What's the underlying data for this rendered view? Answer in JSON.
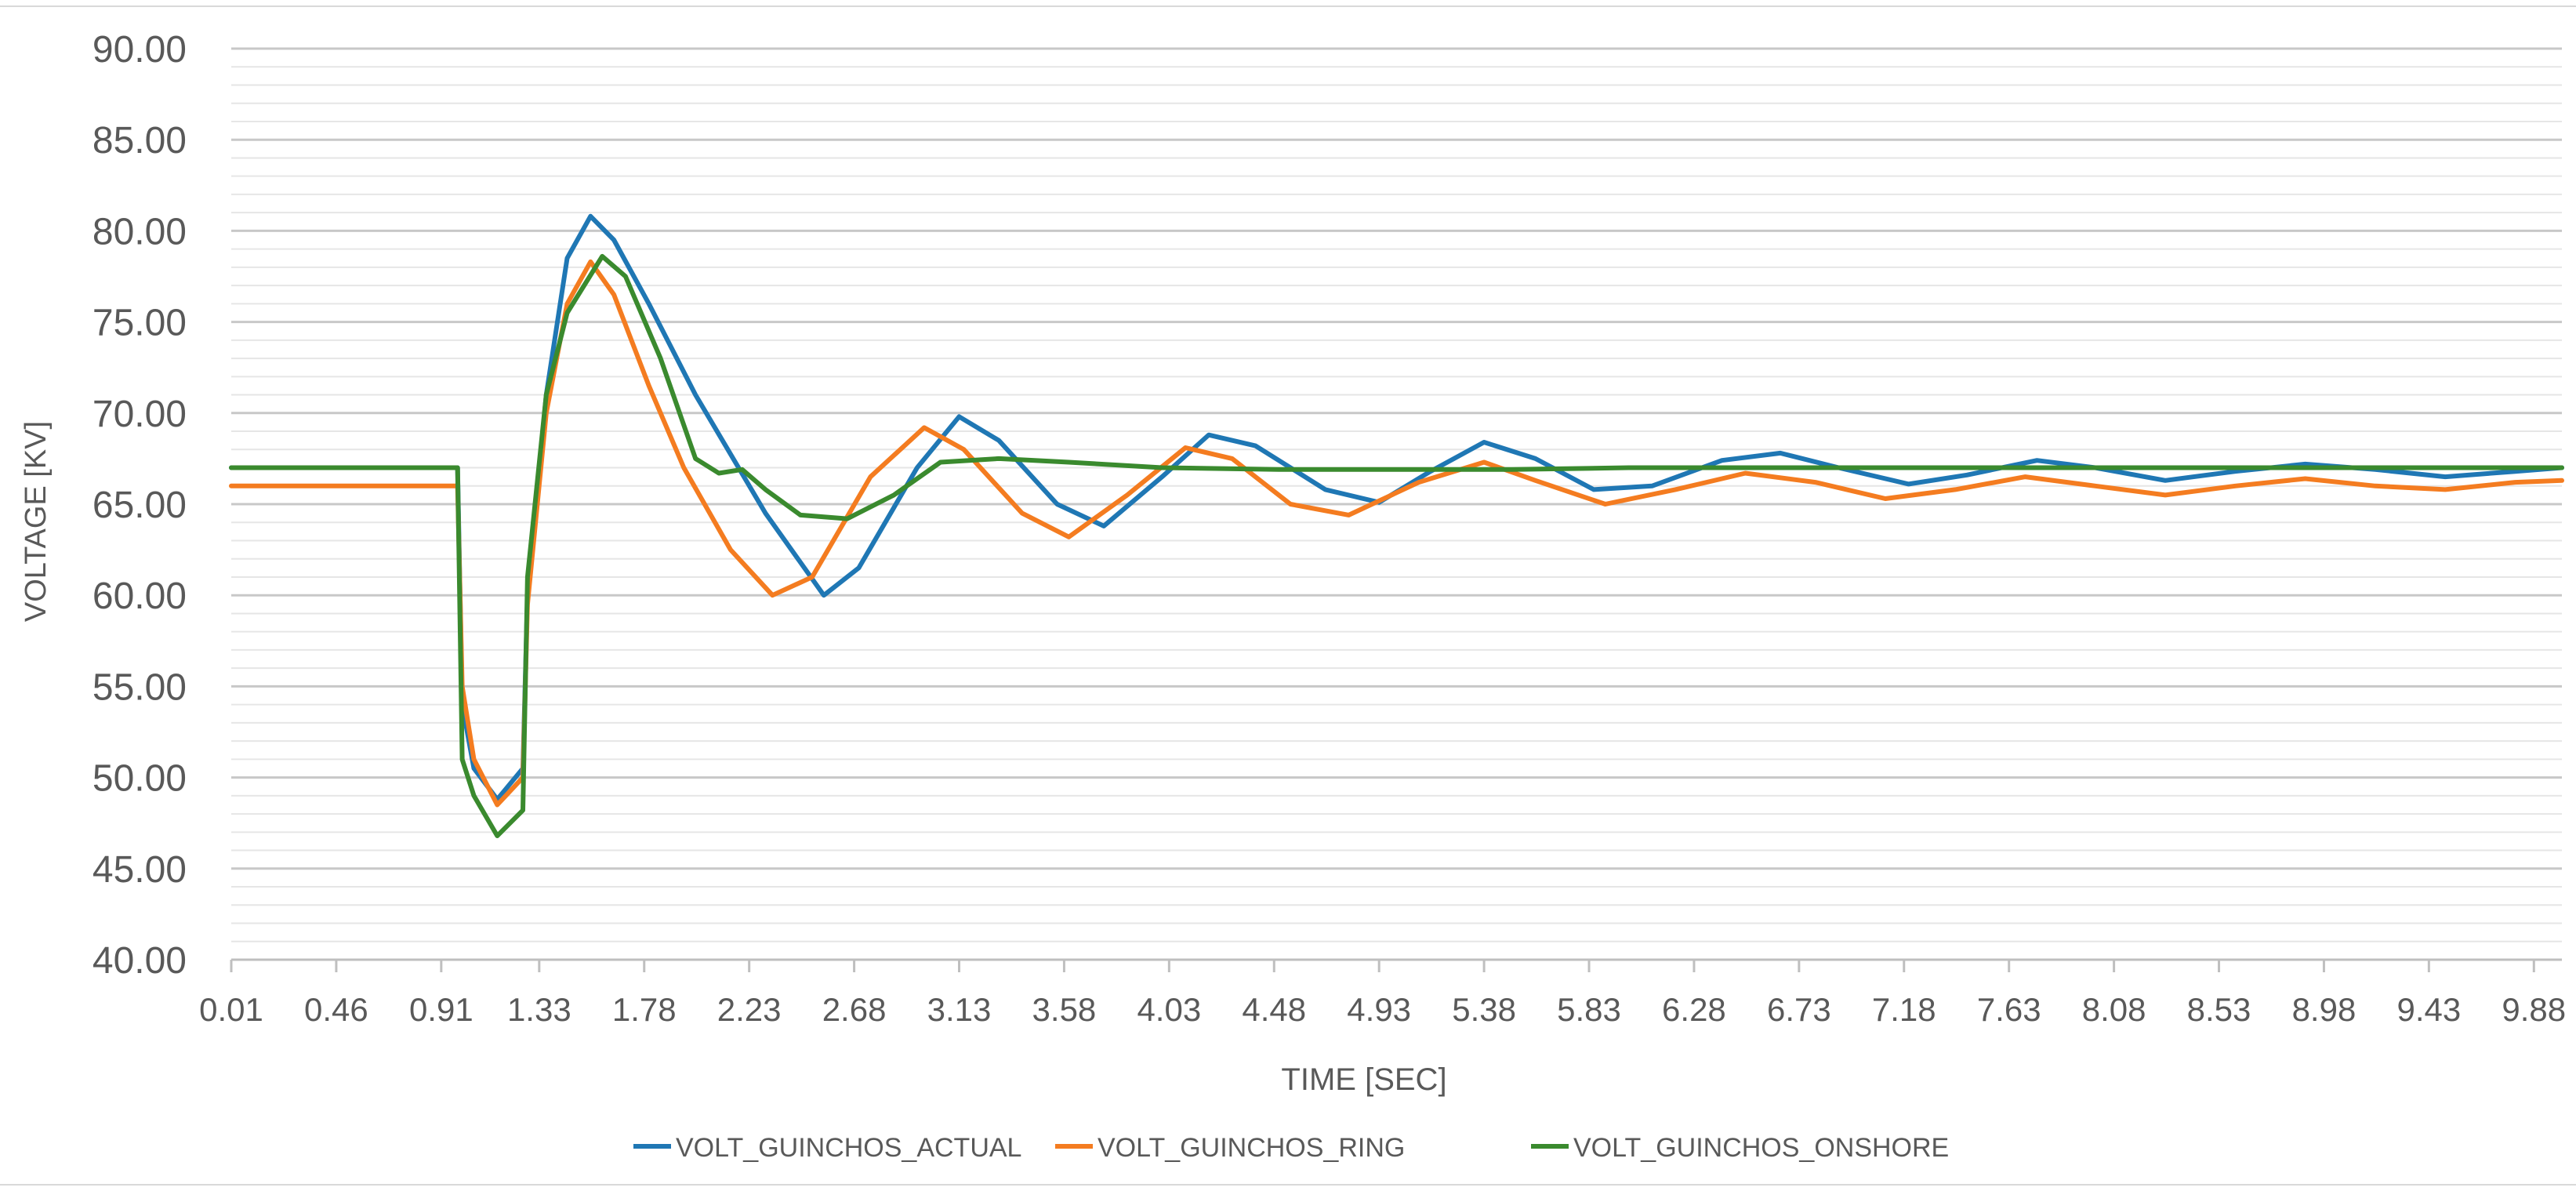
{
  "chart_data": {
    "type": "line",
    "title": "",
    "xlabel": "TIME [SEC]",
    "ylabel": "VOLTAGE [KV]",
    "xlim": [
      0.01,
      10.0
    ],
    "ylim": [
      40,
      90
    ],
    "y_ticks": [
      "40.00",
      "45.00",
      "50.00",
      "55.00",
      "60.00",
      "65.00",
      "70.00",
      "75.00",
      "80.00",
      "85.00",
      "90.00"
    ],
    "x_ticks": [
      "0.01",
      "0.46",
      "0.91",
      "1.33",
      "1.78",
      "2.23",
      "2.68",
      "3.13",
      "3.58",
      "4.03",
      "4.48",
      "4.93",
      "5.38",
      "5.83",
      "6.28",
      "6.73",
      "7.18",
      "7.63",
      "8.08",
      "8.53",
      "8.98",
      "9.43",
      "9.88"
    ],
    "grid": "horizontal major and minor",
    "legend_position": "bottom",
    "series": [
      {
        "name": "VOLT_GUINCHOS_ACTUAL",
        "color": "#1F77B4",
        "points": [
          [
            0.01,
            67.0
          ],
          [
            0.98,
            67.0
          ],
          [
            1.0,
            54.0
          ],
          [
            1.05,
            50.5
          ],
          [
            1.15,
            48.8
          ],
          [
            1.26,
            50.5
          ],
          [
            1.28,
            60.0
          ],
          [
            1.36,
            71.0
          ],
          [
            1.45,
            78.5
          ],
          [
            1.55,
            80.8
          ],
          [
            1.65,
            79.5
          ],
          [
            1.8,
            76.0
          ],
          [
            2.0,
            71.0
          ],
          [
            2.3,
            64.5
          ],
          [
            2.55,
            60.0
          ],
          [
            2.7,
            61.5
          ],
          [
            2.95,
            67.0
          ],
          [
            3.13,
            69.8
          ],
          [
            3.3,
            68.5
          ],
          [
            3.55,
            65.0
          ],
          [
            3.75,
            63.8
          ],
          [
            4.0,
            66.5
          ],
          [
            4.2,
            68.8
          ],
          [
            4.4,
            68.2
          ],
          [
            4.7,
            65.8
          ],
          [
            4.93,
            65.1
          ],
          [
            5.15,
            66.8
          ],
          [
            5.38,
            68.4
          ],
          [
            5.6,
            67.5
          ],
          [
            5.85,
            65.8
          ],
          [
            6.1,
            66.0
          ],
          [
            6.4,
            67.4
          ],
          [
            6.65,
            67.8
          ],
          [
            6.9,
            67.0
          ],
          [
            7.2,
            66.1
          ],
          [
            7.45,
            66.6
          ],
          [
            7.75,
            67.4
          ],
          [
            8.0,
            67.0
          ],
          [
            8.3,
            66.3
          ],
          [
            8.6,
            66.8
          ],
          [
            8.9,
            67.2
          ],
          [
            9.2,
            66.9
          ],
          [
            9.5,
            66.5
          ],
          [
            9.8,
            66.8
          ],
          [
            10.0,
            67.0
          ]
        ]
      },
      {
        "name": "VOLT_GUINCHOS_RING",
        "color": "#F47C20",
        "points": [
          [
            0.01,
            66.0
          ],
          [
            0.98,
            66.0
          ],
          [
            1.0,
            55.0
          ],
          [
            1.05,
            51.0
          ],
          [
            1.15,
            48.5
          ],
          [
            1.26,
            50.0
          ],
          [
            1.28,
            59.5
          ],
          [
            1.36,
            70.0
          ],
          [
            1.45,
            76.0
          ],
          [
            1.55,
            78.3
          ],
          [
            1.65,
            76.5
          ],
          [
            1.8,
            71.5
          ],
          [
            1.95,
            67.0
          ],
          [
            2.15,
            62.5
          ],
          [
            2.33,
            60.0
          ],
          [
            2.5,
            61.0
          ],
          [
            2.75,
            66.5
          ],
          [
            2.98,
            69.2
          ],
          [
            3.15,
            68.0
          ],
          [
            3.4,
            64.5
          ],
          [
            3.6,
            63.2
          ],
          [
            3.85,
            65.5
          ],
          [
            4.1,
            68.1
          ],
          [
            4.3,
            67.5
          ],
          [
            4.55,
            65.0
          ],
          [
            4.8,
            64.4
          ],
          [
            5.1,
            66.2
          ],
          [
            5.38,
            67.3
          ],
          [
            5.6,
            66.3
          ],
          [
            5.9,
            65.0
          ],
          [
            6.2,
            65.8
          ],
          [
            6.5,
            66.7
          ],
          [
            6.8,
            66.2
          ],
          [
            7.1,
            65.3
          ],
          [
            7.4,
            65.8
          ],
          [
            7.7,
            66.5
          ],
          [
            8.0,
            66.0
          ],
          [
            8.3,
            65.5
          ],
          [
            8.6,
            66.0
          ],
          [
            8.9,
            66.4
          ],
          [
            9.2,
            66.0
          ],
          [
            9.5,
            65.8
          ],
          [
            9.8,
            66.2
          ],
          [
            10.0,
            66.3
          ]
        ]
      },
      {
        "name": "VOLT_GUINCHOS_ONSHORE",
        "color": "#3A8A2E",
        "points": [
          [
            0.01,
            67.0
          ],
          [
            0.98,
            67.0
          ],
          [
            1.0,
            51.0
          ],
          [
            1.05,
            49.0
          ],
          [
            1.15,
            46.8
          ],
          [
            1.26,
            48.2
          ],
          [
            1.28,
            61.0
          ],
          [
            1.36,
            71.0
          ],
          [
            1.45,
            75.5
          ],
          [
            1.6,
            78.6
          ],
          [
            1.7,
            77.5
          ],
          [
            1.85,
            73.0
          ],
          [
            2.0,
            67.5
          ],
          [
            2.1,
            66.7
          ],
          [
            2.2,
            66.9
          ],
          [
            2.3,
            65.8
          ],
          [
            2.45,
            64.4
          ],
          [
            2.65,
            64.2
          ],
          [
            2.85,
            65.5
          ],
          [
            3.05,
            67.3
          ],
          [
            3.3,
            67.5
          ],
          [
            3.6,
            67.3
          ],
          [
            4.0,
            67.0
          ],
          [
            4.5,
            66.9
          ],
          [
            5.0,
            66.9
          ],
          [
            5.5,
            66.9
          ],
          [
            6.0,
            67.0
          ],
          [
            6.5,
            67.0
          ],
          [
            7.0,
            67.0
          ],
          [
            7.5,
            67.0
          ],
          [
            8.0,
            67.0
          ],
          [
            8.5,
            67.0
          ],
          [
            9.0,
            67.0
          ],
          [
            9.5,
            67.0
          ],
          [
            10.0,
            67.0
          ]
        ]
      }
    ]
  }
}
